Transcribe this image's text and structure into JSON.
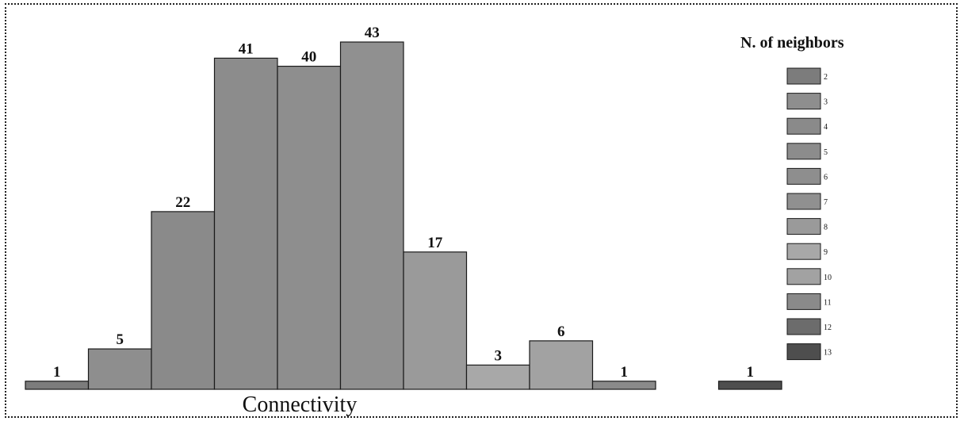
{
  "chart_data": {
    "type": "bar",
    "title": "",
    "xlabel": "Connectivity",
    "ylabel": "",
    "legend_title": "N. of neighbors",
    "legend_position": "right",
    "grid": false,
    "ylim": [
      0,
      45
    ],
    "categories": [
      "2",
      "3",
      "4",
      "5",
      "6",
      "7",
      "8",
      "9",
      "10",
      "11",
      "12",
      "13"
    ],
    "values": [
      1,
      5,
      22,
      41,
      40,
      43,
      17,
      3,
      6,
      1,
      0,
      1
    ],
    "data_labels": [
      "1",
      "5",
      "22",
      "41",
      "40",
      "43",
      "17",
      "3",
      "6",
      "1",
      "",
      "1"
    ],
    "colors": [
      "#7c7c7c",
      "#8e8e8e",
      "#8a8a8a",
      "#8c8c8c",
      "#8e8e8e",
      "#909090",
      "#9a9a9a",
      "#a8a8a8",
      "#a2a2a2",
      "#8a8a8a",
      "#6c6c6c",
      "#4e4e4e"
    ]
  }
}
